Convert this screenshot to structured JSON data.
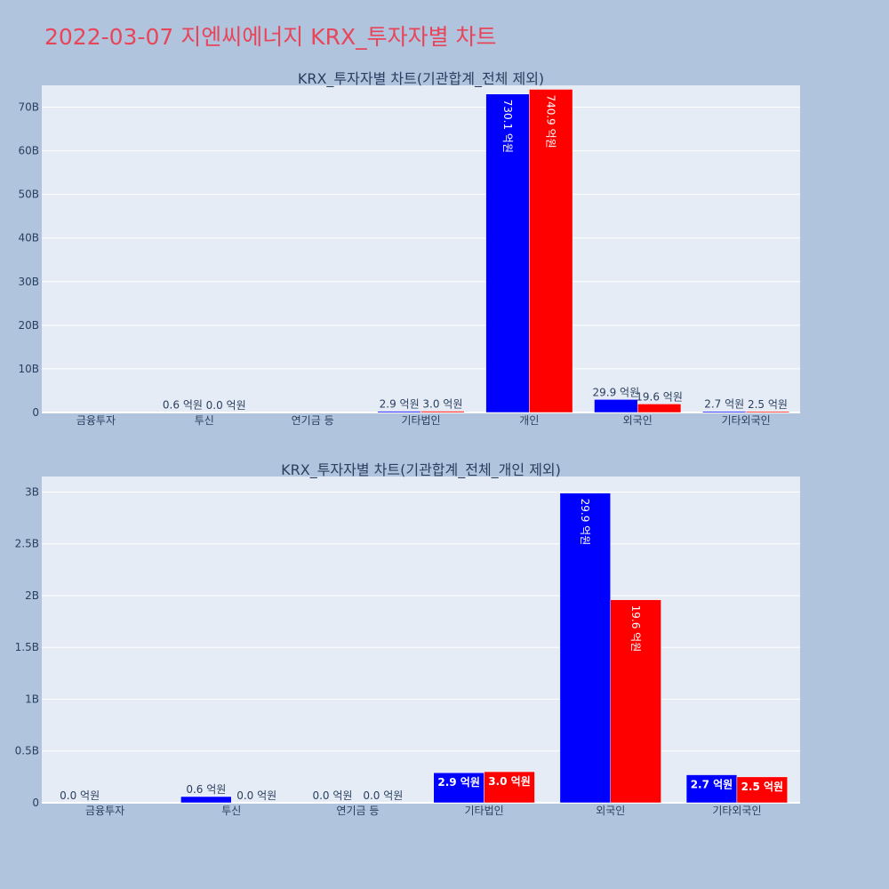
{
  "title": "2022-03-07 지엔씨에너지 KRX_투자자별 차트",
  "colors": {
    "buy": "#0000ff",
    "sell": "#ff0000",
    "plot_bg": "#e5ecf6",
    "page_bg": "#b0c4de",
    "title": "#e8455a"
  },
  "chart_data": [
    {
      "type": "bar",
      "title": "KRX_투자자별 차트(기관합계_전체 제외)",
      "categories": [
        "금융투자",
        "투신",
        "연기금 등",
        "기타법인",
        "개인",
        "외국인",
        "기타외국인"
      ],
      "ylim": [
        0,
        75
      ],
      "yticks": [
        0,
        10,
        20,
        30,
        40,
        50,
        60,
        70
      ],
      "ytick_labels": [
        "0",
        "10B",
        "20B",
        "30B",
        "40B",
        "50B",
        "60B",
        "70B"
      ],
      "grid": true,
      "series": [
        {
          "values": [
            0.0,
            0.06,
            0.0,
            0.29,
            73.01,
            2.99,
            0.27
          ],
          "labels": [
            "",
            "0.6 억원",
            "",
            "2.9 억원",
            "730.1 억원",
            "29.9 억원",
            "2.7 억원"
          ]
        },
        {
          "values": [
            0.0,
            0.0,
            0.0,
            0.3,
            74.09,
            1.96,
            0.25
          ],
          "labels": [
            "",
            "0.0 억원",
            "",
            "3.0 억원",
            "740.9 억원",
            "19.6 억원",
            "2.5 억원"
          ]
        }
      ]
    },
    {
      "type": "bar",
      "title": "KRX_투자자별 차트(기관합계_전체_개인 제외)",
      "categories": [
        "금융투자",
        "투신",
        "연기금 등",
        "기타법인",
        "외국인",
        "기타외국인"
      ],
      "ylim": [
        0,
        3.15
      ],
      "yticks": [
        0,
        0.5,
        1,
        1.5,
        2,
        2.5,
        3
      ],
      "ytick_labels": [
        "0",
        "0.5B",
        "1B",
        "1.5B",
        "2B",
        "2.5B",
        "3B"
      ],
      "grid": true,
      "series": [
        {
          "values": [
            0.0,
            0.06,
            0.0,
            0.29,
            2.99,
            0.27
          ],
          "labels": [
            "0.0 억원",
            "0.6 억원",
            "0.0 억원",
            "2.9 억원",
            "29.9 억원",
            "2.7 억원"
          ]
        },
        {
          "values": [
            0.0,
            0.0,
            0.0,
            0.3,
            1.96,
            0.25
          ],
          "labels": [
            "",
            "0.0 억원",
            "0.0 억원",
            "3.0 억원",
            "19.6 억원",
            "2.5 억원"
          ]
        }
      ]
    }
  ]
}
